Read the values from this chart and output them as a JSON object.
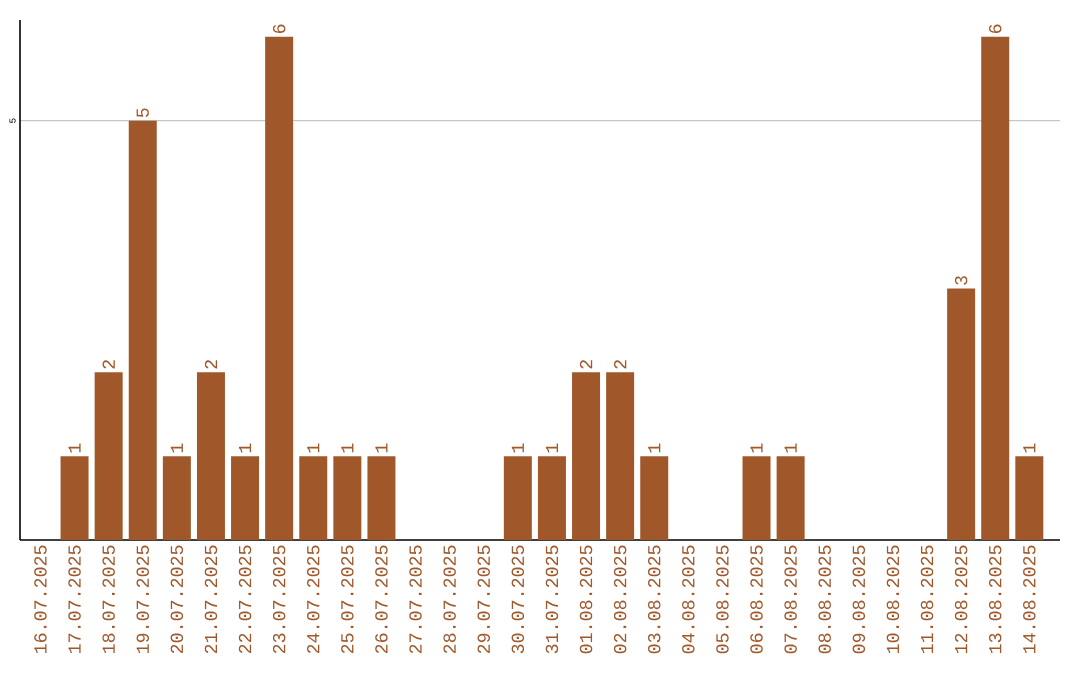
{
  "chart_data": {
    "type": "bar",
    "categories": [
      "16.07.2025",
      "17.07.2025",
      "18.07.2025",
      "19.07.2025",
      "20.07.2025",
      "21.07.2025",
      "22.07.2025",
      "23.07.2025",
      "24.07.2025",
      "25.07.2025",
      "26.07.2025",
      "27.07.2025",
      "28.07.2025",
      "29.07.2025",
      "30.07.2025",
      "31.07.2025",
      "01.08.2025",
      "02.08.2025",
      "03.08.2025",
      "04.08.2025",
      "05.08.2025",
      "06.08.2025",
      "07.08.2025",
      "08.08.2025",
      "09.08.2025",
      "10.08.2025",
      "11.08.2025",
      "12.08.2025",
      "13.08.2025",
      "14.08.2025"
    ],
    "values": [
      0,
      1,
      2,
      5,
      1,
      2,
      1,
      6,
      1,
      1,
      1,
      0,
      0,
      0,
      1,
      1,
      2,
      2,
      1,
      0,
      0,
      1,
      1,
      0,
      0,
      0,
      0,
      3,
      6,
      1
    ],
    "value_labels": [
      null,
      "1",
      "2",
      "5",
      "1",
      "2",
      "1",
      "6",
      "1",
      "1",
      "1",
      null,
      null,
      null,
      "1",
      "1",
      "2",
      "2",
      "1",
      null,
      null,
      "1",
      "1",
      null,
      null,
      null,
      null,
      "3",
      "6",
      "1"
    ],
    "color": "#a0582a",
    "ylim": [
      0,
      6.2
    ],
    "yticks": [
      5
    ],
    "grid": "y"
  }
}
